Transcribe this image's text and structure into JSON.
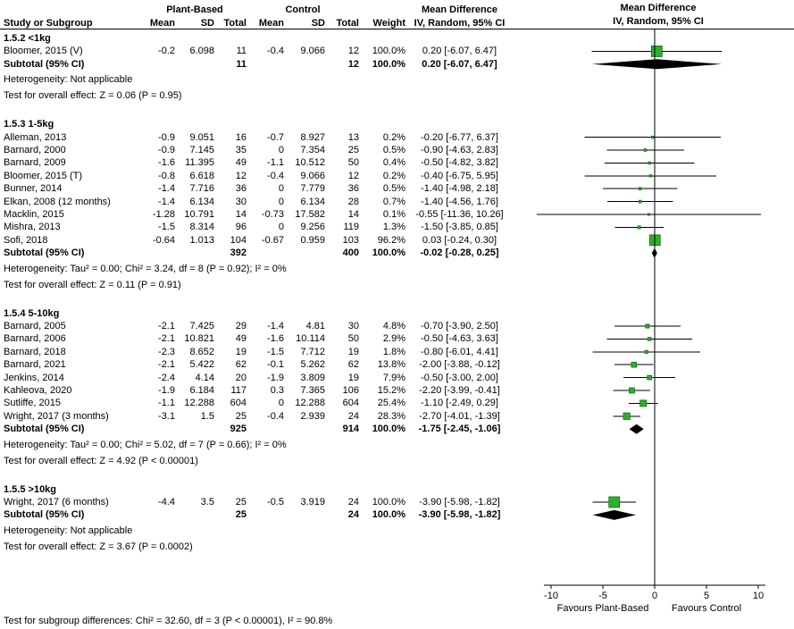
{
  "header": {
    "col_study": "Study or Subgroup",
    "group_plant": "Plant-Based",
    "group_control": "Control",
    "col_mean": "Mean",
    "col_sd": "SD",
    "col_total": "Total",
    "col_weight": "Weight",
    "md_title": "Mean Difference",
    "md_subtitle": "IV, Random, 95% CI",
    "plot_title": "Mean Difference",
    "plot_subtitle": "IV, Random, 95% CI"
  },
  "axis": {
    "min": -10,
    "max": 10,
    "tick_values": [
      -10,
      -5,
      0,
      5,
      10
    ],
    "ticks": [
      "-10",
      "-5",
      "0",
      "5",
      "10"
    ],
    "favours_left": "Favours Plant-Based",
    "favours_right": "Favours Control"
  },
  "footer": {
    "subgroup_differences": "Test for subgroup differences: Chi² = 32.60, df = 3 (P < 0.00001), I² = 90.8%"
  },
  "colors": {
    "marker_fill": "#2FAE2F",
    "marker_stroke": "#116E11",
    "diamond_fill": "#000000",
    "line": "#000000"
  },
  "chart_data": {
    "type": "forest",
    "effect_measure": "Mean Difference",
    "model": "IV, Random, 95% CI",
    "subgroups": [
      {
        "label": "1.5.2 <1kg",
        "studies": [
          {
            "name": "Bloomer, 2015 (V)",
            "mean1": "-0.2",
            "sd1": "6.098",
            "total1": "11",
            "mean2": "-0.4",
            "sd2": "9.066",
            "total2": "12",
            "weight": "100.0%",
            "weight_value": 100.0,
            "ci_text": "0.20 [-6.07, 6.47]",
            "est": 0.2,
            "lo": -6.07,
            "hi": 6.47
          }
        ],
        "subtotal": {
          "label": "Subtotal (95% CI)",
          "total1": "11",
          "total2": "12",
          "weight": "100.0%",
          "ci_text": "0.20 [-6.07, 6.47]",
          "est": 0.2,
          "lo": -6.07,
          "hi": 6.47
        },
        "heterogeneity": "Heterogeneity: Not applicable",
        "overall_effect": "Test for overall effect: Z = 0.06 (P = 0.95)"
      },
      {
        "label": "1.5.3 1-5kg",
        "studies": [
          {
            "name": "Alleman, 2013",
            "mean1": "-0.9",
            "sd1": "9.051",
            "total1": "16",
            "mean2": "-0.7",
            "sd2": "8.927",
            "total2": "13",
            "weight": "0.2%",
            "weight_value": 0.2,
            "ci_text": "-0.20 [-6.77, 6.37]",
            "est": -0.2,
            "lo": -6.77,
            "hi": 6.37
          },
          {
            "name": "Barnard, 2000",
            "mean1": "-0.9",
            "sd1": "7.145",
            "total1": "35",
            "mean2": "0",
            "sd2": "7.354",
            "total2": "25",
            "weight": "0.5%",
            "weight_value": 0.5,
            "ci_text": "-0.90 [-4.63, 2.83]",
            "est": -0.9,
            "lo": -4.63,
            "hi": 2.83
          },
          {
            "name": "Barnard, 2009",
            "mean1": "-1.6",
            "sd1": "11.395",
            "total1": "49",
            "mean2": "-1.1",
            "sd2": "10.512",
            "total2": "50",
            "weight": "0.4%",
            "weight_value": 0.4,
            "ci_text": "-0.50 [-4.82, 3.82]",
            "est": -0.5,
            "lo": -4.82,
            "hi": 3.82
          },
          {
            "name": "Bloomer, 2015 (T)",
            "mean1": "-0.8",
            "sd1": "6.618",
            "total1": "12",
            "mean2": "-0.4",
            "sd2": "9.066",
            "total2": "12",
            "weight": "0.2%",
            "weight_value": 0.2,
            "ci_text": "-0.40 [-6.75, 5.95]",
            "est": -0.4,
            "lo": -6.75,
            "hi": 5.95
          },
          {
            "name": "Bunner, 2014",
            "mean1": "-1.4",
            "sd1": "7.716",
            "total1": "36",
            "mean2": "0",
            "sd2": "7.779",
            "total2": "36",
            "weight": "0.5%",
            "weight_value": 0.5,
            "ci_text": "-1.40 [-4.98, 2.18]",
            "est": -1.4,
            "lo": -4.98,
            "hi": 2.18
          },
          {
            "name": "Elkan, 2008 (12 months)",
            "mean1": "-1.4",
            "sd1": "6.134",
            "total1": "30",
            "mean2": "0",
            "sd2": "6.134",
            "total2": "28",
            "weight": "0.7%",
            "weight_value": 0.7,
            "ci_text": "-1.40 [-4.56, 1.76]",
            "est": -1.4,
            "lo": -4.56,
            "hi": 1.76
          },
          {
            "name": "Macklin, 2015",
            "mean1": "-1.28",
            "sd1": "10.791",
            "total1": "14",
            "mean2": "-0.73",
            "sd2": "17.582",
            "total2": "14",
            "weight": "0.1%",
            "weight_value": 0.1,
            "ci_text": "-0.55 [-11.36, 10.26]",
            "est": -0.55,
            "lo": -11.36,
            "hi": 10.26
          },
          {
            "name": "Mishra, 2013",
            "mean1": "-1.5",
            "sd1": "8.314",
            "total1": "96",
            "mean2": "0",
            "sd2": "9.256",
            "total2": "119",
            "weight": "1.3%",
            "weight_value": 1.3,
            "ci_text": "-1.50 [-3.85, 0.85]",
            "est": -1.5,
            "lo": -3.85,
            "hi": 0.85
          },
          {
            "name": "Sofi, 2018",
            "mean1": "-0.64",
            "sd1": "1.013",
            "total1": "104",
            "mean2": "-0.67",
            "sd2": "0.959",
            "total2": "103",
            "weight": "96.2%",
            "weight_value": 96.2,
            "ci_text": "0.03 [-0.24, 0.30]",
            "est": 0.03,
            "lo": -0.24,
            "hi": 0.3
          }
        ],
        "subtotal": {
          "label": "Subtotal (95% CI)",
          "total1": "392",
          "total2": "400",
          "weight": "100.0%",
          "ci_text": "-0.02 [-0.28, 0.25]",
          "est": -0.02,
          "lo": -0.28,
          "hi": 0.25
        },
        "heterogeneity": "Heterogeneity: Tau² = 0.00; Chi² = 3.24, df = 8 (P = 0.92); I² = 0%",
        "overall_effect": "Test for overall effect: Z = 0.11 (P = 0.91)"
      },
      {
        "label": "1.5.4 5-10kg",
        "studies": [
          {
            "name": "Barnard, 2005",
            "mean1": "-2.1",
            "sd1": "7.425",
            "total1": "29",
            "mean2": "-1.4",
            "sd2": "4.81",
            "total2": "30",
            "weight": "4.8%",
            "weight_value": 4.8,
            "ci_text": "-0.70 [-3.90, 2.50]",
            "est": -0.7,
            "lo": -3.9,
            "hi": 2.5
          },
          {
            "name": "Barnard, 2006",
            "mean1": "-2.1",
            "sd1": "10.821",
            "total1": "49",
            "mean2": "-1.6",
            "sd2": "10.114",
            "total2": "50",
            "weight": "2.9%",
            "weight_value": 2.9,
            "ci_text": "-0.50 [-4.63, 3.63]",
            "est": -0.5,
            "lo": -4.63,
            "hi": 3.63
          },
          {
            "name": "Barnard, 2018",
            "mean1": "-2.3",
            "sd1": "8.652",
            "total1": "19",
            "mean2": "-1.5",
            "sd2": "7.712",
            "total2": "19",
            "weight": "1.8%",
            "weight_value": 1.8,
            "ci_text": "-0.80 [-6.01, 4.41]",
            "est": -0.8,
            "lo": -6.01,
            "hi": 4.41
          },
          {
            "name": "Barnard, 2021",
            "mean1": "-2.1",
            "sd1": "5.422",
            "total1": "62",
            "mean2": "-0.1",
            "sd2": "5.262",
            "total2": "62",
            "weight": "13.8%",
            "weight_value": 13.8,
            "ci_text": "-2.00 [-3.88, -0.12]",
            "est": -2.0,
            "lo": -3.88,
            "hi": -0.12
          },
          {
            "name": "Jenkins, 2014",
            "mean1": "-2.4",
            "sd1": "4.14",
            "total1": "20",
            "mean2": "-1.9",
            "sd2": "3.809",
            "total2": "19",
            "weight": "7.9%",
            "weight_value": 7.9,
            "ci_text": "-0.50 [-3.00, 2.00]",
            "est": -0.5,
            "lo": -3.0,
            "hi": 2.0
          },
          {
            "name": "Kahleova, 2020",
            "mean1": "-1.9",
            "sd1": "6.184",
            "total1": "117",
            "mean2": "0.3",
            "sd2": "7.365",
            "total2": "106",
            "weight": "15.2%",
            "weight_value": 15.2,
            "ci_text": "-2.20 [-3.99, -0.41]",
            "est": -2.2,
            "lo": -3.99,
            "hi": -0.41
          },
          {
            "name": "Sutliffe, 2015",
            "mean1": "-1.1",
            "sd1": "12.288",
            "total1": "604",
            "mean2": "0",
            "sd2": "12.288",
            "total2": "604",
            "weight": "25.4%",
            "weight_value": 25.4,
            "ci_text": "-1.10 [-2.49, 0.29]",
            "est": -1.1,
            "lo": -2.49,
            "hi": 0.29
          },
          {
            "name": "Wright, 2017 (3 months)",
            "mean1": "-3.1",
            "sd1": "1.5",
            "total1": "25",
            "mean2": "-0.4",
            "sd2": "2.939",
            "total2": "24",
            "weight": "28.3%",
            "weight_value": 28.3,
            "ci_text": "-2.70 [-4.01, -1.39]",
            "est": -2.7,
            "lo": -4.01,
            "hi": -1.39
          }
        ],
        "subtotal": {
          "label": "Subtotal (95% CI)",
          "total1": "925",
          "total2": "914",
          "weight": "100.0%",
          "ci_text": "-1.75 [-2.45, -1.06]",
          "est": -1.75,
          "lo": -2.45,
          "hi": -1.06
        },
        "heterogeneity": "Heterogeneity: Tau² = 0.00; Chi² = 5.02, df = 7 (P = 0.66); I² = 0%",
        "overall_effect": "Test for overall effect: Z = 4.92 (P < 0.00001)"
      },
      {
        "label": "1.5.5 >10kg",
        "studies": [
          {
            "name": "Wright, 2017 (6 months)",
            "mean1": "-4.4",
            "sd1": "3.5",
            "total1": "25",
            "mean2": "-0.5",
            "sd2": "3.919",
            "total2": "24",
            "weight": "100.0%",
            "weight_value": 100.0,
            "ci_text": "-3.90 [-5.98, -1.82]",
            "est": -3.9,
            "lo": -5.98,
            "hi": -1.82
          }
        ],
        "subtotal": {
          "label": "Subtotal (95% CI)",
          "total1": "25",
          "total2": "24",
          "weight": "100.0%",
          "ci_text": "-3.90 [-5.98, -1.82]",
          "est": -3.9,
          "lo": -5.98,
          "hi": -1.82
        },
        "heterogeneity": "Heterogeneity: Not applicable",
        "overall_effect": "Test for overall effect: Z = 3.67 (P = 0.0002)"
      }
    ]
  }
}
